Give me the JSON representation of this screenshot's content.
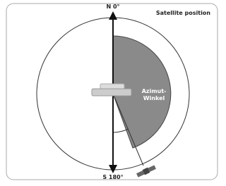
{
  "header": {
    "title": "Satellite position"
  },
  "axis": {
    "north": "N 0°",
    "south": "S 180°"
  },
  "sector": {
    "lines": [
      "Azimut-",
      "Winkel"
    ]
  }
}
